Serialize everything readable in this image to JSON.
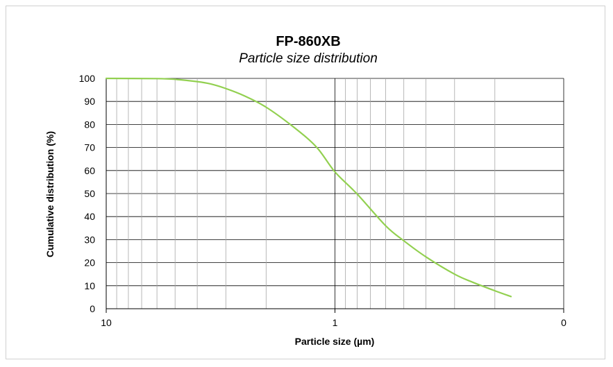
{
  "chart_data": {
    "type": "line",
    "title": "FP-860XB",
    "subtitle": "Particle size distribution",
    "xlabel": "Particle size (µm)",
    "ylabel": "Cumulative distribution (%)",
    "x_scale": "log",
    "x_reversed": true,
    "xlim": [
      0.1,
      10
    ],
    "ylim": [
      0,
      100
    ],
    "x_tick_labels": [
      "10",
      "1",
      "0"
    ],
    "y_tick_labels": [
      "0",
      "10",
      "20",
      "30",
      "40",
      "50",
      "60",
      "70",
      "80",
      "90",
      "100"
    ],
    "grid": true,
    "series": [
      {
        "color": "#92d050",
        "x": [
          10,
          6.0,
          5.0,
          4.0,
          3.5,
          3.0,
          2.5,
          2.0,
          1.5,
          1.2,
          1.0,
          0.8,
          0.6,
          0.5,
          0.4,
          0.3,
          0.25,
          0.2,
          0.17
        ],
        "y": [
          100,
          99.9,
          99.6,
          98.6,
          97.6,
          95.6,
          92.5,
          87.5,
          78.5,
          70.0,
          59.4,
          49.8,
          36.0,
          29.5,
          22.5,
          15.0,
          11.5,
          7.8,
          5.3
        ]
      }
    ]
  }
}
